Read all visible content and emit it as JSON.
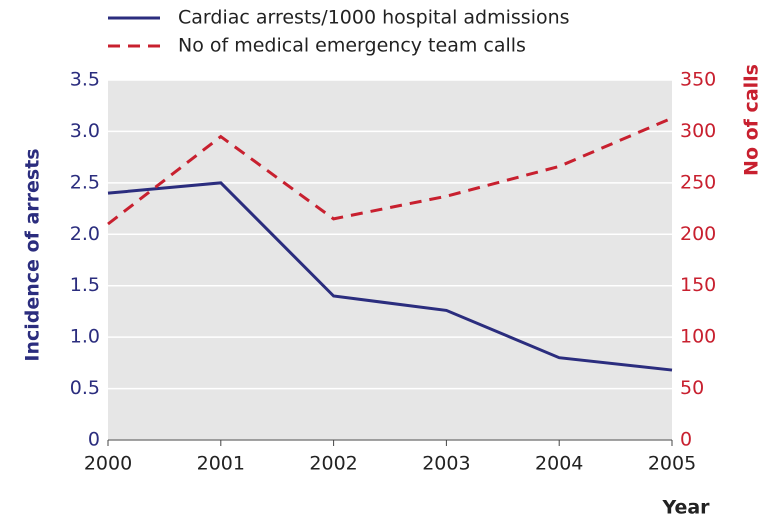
{
  "chart_data": {
    "type": "line",
    "x": [
      2000,
      2001,
      2002,
      2003,
      2004,
      2005
    ],
    "xlim": [
      2000,
      2005
    ],
    "xticks": [
      2000,
      2001,
      2002,
      2003,
      2004,
      2005
    ],
    "x_label": "Year",
    "y_label": "Incidence of arrests",
    "y_color": "#2b2d7e",
    "y2_label": "No of calls",
    "y2_color": "#c8202f",
    "ylim": [
      0,
      3.5
    ],
    "yticks": [
      0,
      0.5,
      {
        "value": 1,
        "label": "1.0"
      },
      1.5,
      {
        "value": 2,
        "label": "2.0"
      },
      2.5,
      {
        "value": 3,
        "label": "3.0"
      },
      3.5
    ],
    "y2lim": [
      0,
      350
    ],
    "y2ticks": [
      0,
      50,
      100,
      150,
      200,
      250,
      300,
      350
    ],
    "grid": true,
    "legend": "top",
    "series": [
      {
        "name": "Cardiac arrests/1000 hospital admissions",
        "color": "#2b2d7e",
        "dash": false,
        "values": [
          2.4,
          2.5,
          1.4,
          1.26,
          0.8,
          0.68
        ]
      },
      {
        "name": "No of medical emergency team calls",
        "color": "#c8202f",
        "dash": true,
        "axis": "y2",
        "values": [
          210,
          295,
          215,
          237,
          266,
          313
        ]
      }
    ]
  }
}
